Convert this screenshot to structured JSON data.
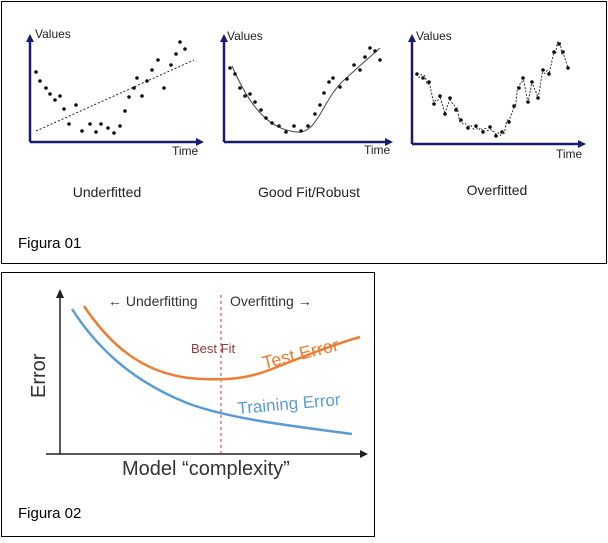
{
  "figure1": {
    "label": "Figura 01",
    "panels": [
      {
        "caption": "Underfitted",
        "ylabel": "Values",
        "xlabel": "Time"
      },
      {
        "caption": "Good Fit/Robust",
        "ylabel": "Values",
        "xlabel": "Time"
      },
      {
        "caption": "Overfitted",
        "ylabel": "Values",
        "xlabel": "Time"
      }
    ]
  },
  "figure2": {
    "label": "Figura 02",
    "ylabel": "Error",
    "xlabel": "Model “complexity”",
    "left_region": "← Underfitting",
    "right_region": "Overfitting →",
    "best_fit_label": "Best Fit",
    "test_label": "Test Error",
    "train_label": "Training Error"
  },
  "colors": {
    "axis": "#1a1a6e",
    "test_error": "#ed7d31",
    "training_error": "#5b9bd5",
    "best_fit": "#c0392b",
    "best_fit_text": "#8b3a3a"
  }
}
